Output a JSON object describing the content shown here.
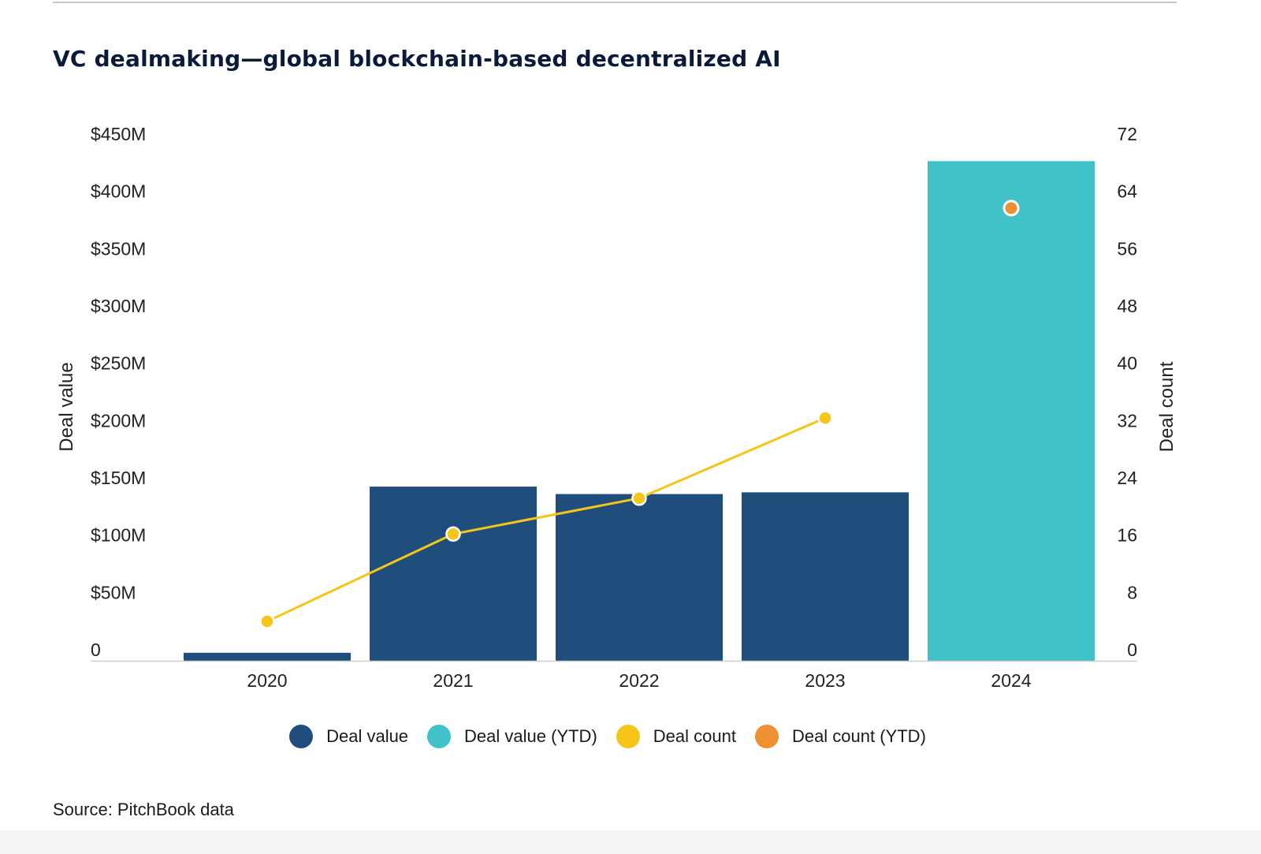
{
  "chart_data": {
    "type": "bar",
    "title": "VC dealmaking—global blockchain-based decentralized AI",
    "categories": [
      "2020",
      "2021",
      "2022",
      "2023",
      "2024"
    ],
    "series": [
      {
        "name": "Deal value",
        "kind": "bar",
        "axis": "left",
        "color": "#1f4e7d",
        "values": [
          7,
          152,
          145.5,
          147,
          null
        ]
      },
      {
        "name": "Deal value (YTD)",
        "kind": "bar",
        "axis": "left",
        "color": "#41c1c8",
        "values": [
          null,
          null,
          null,
          null,
          436
        ]
      },
      {
        "name": "Deal count",
        "kind": "line",
        "axis": "right",
        "color": "#f5c518",
        "values": [
          5.5,
          17.7,
          22.7,
          33.9,
          null
        ]
      },
      {
        "name": "Deal count (YTD)",
        "kind": "point",
        "axis": "right",
        "color": "#ee8f32",
        "values": [
          null,
          null,
          null,
          null,
          63.2
        ]
      }
    ],
    "ylabel": "Deal value",
    "y2label": "Deal count",
    "ylim": [
      0,
      450
    ],
    "y2lim": [
      0,
      72
    ],
    "yticks": [
      "0",
      "$50M",
      "$100M",
      "$150M",
      "$200M",
      "$250M",
      "$300M",
      "$350M",
      "$400M",
      "$450M"
    ],
    "y2ticks": [
      "0",
      "8",
      "16",
      "24",
      "32",
      "40",
      "48",
      "56",
      "64",
      "72"
    ],
    "grid": false,
    "legend": "bottom-center"
  },
  "source": "Source: PitchBook data"
}
